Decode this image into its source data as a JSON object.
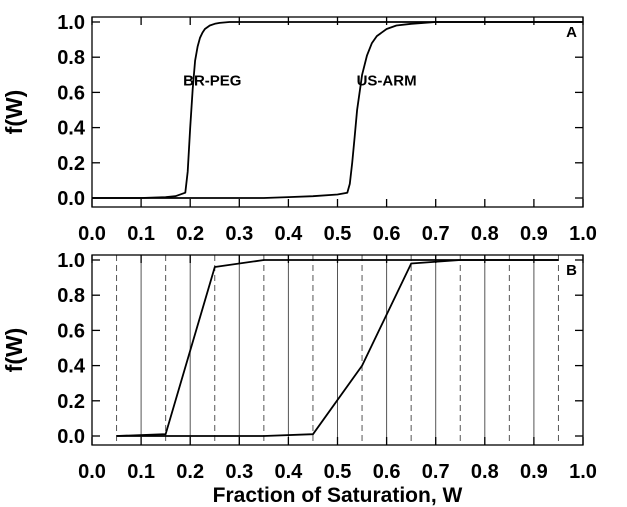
{
  "chart_data": [
    {
      "type": "line",
      "panel_label": "A",
      "ylabel": "f(W)",
      "xlabel": "",
      "xlim": [
        0.0,
        1.0
      ],
      "ylim": [
        0.0,
        1.0
      ],
      "x_ticks": [
        "0.0",
        "0.1",
        "0.2",
        "0.3",
        "0.4",
        "0.5",
        "0.6",
        "0.7",
        "0.8",
        "0.9",
        "1.0"
      ],
      "y_ticks": [
        "0.0",
        "0.2",
        "0.4",
        "0.6",
        "0.8",
        "1.0"
      ],
      "grid": false,
      "series": [
        {
          "name": "BR-PEG",
          "x": [
            0.0,
            0.05,
            0.1,
            0.15,
            0.17,
            0.19,
            0.195,
            0.2,
            0.205,
            0.21,
            0.215,
            0.22,
            0.225,
            0.23,
            0.24,
            0.25,
            0.26,
            0.28,
            0.3,
            0.35,
            0.4,
            0.5,
            0.6,
            0.7,
            0.8,
            0.9,
            1.0
          ],
          "y": [
            0.0,
            0.0,
            0.0,
            0.005,
            0.01,
            0.03,
            0.15,
            0.4,
            0.62,
            0.78,
            0.86,
            0.91,
            0.94,
            0.96,
            0.98,
            0.99,
            0.995,
            1.0,
            1.0,
            1.0,
            1.0,
            1.0,
            1.0,
            1.0,
            1.0,
            1.0,
            1.0
          ]
        },
        {
          "name": "US-ARM",
          "x": [
            0.0,
            0.35,
            0.4,
            0.45,
            0.5,
            0.52,
            0.525,
            0.53,
            0.535,
            0.54,
            0.545,
            0.55,
            0.56,
            0.57,
            0.58,
            0.6,
            0.62,
            0.65,
            0.7,
            0.75,
            0.8,
            0.9,
            1.0
          ],
          "y": [
            0.0,
            0.0,
            0.005,
            0.01,
            0.02,
            0.03,
            0.08,
            0.2,
            0.35,
            0.5,
            0.6,
            0.7,
            0.81,
            0.88,
            0.92,
            0.96,
            0.98,
            0.99,
            1.0,
            1.0,
            1.0,
            1.0,
            1.0
          ]
        }
      ],
      "annotations": [
        "BR-PEG",
        "US-ARM"
      ]
    },
    {
      "type": "line",
      "panel_label": "B",
      "ylabel": "f(W)",
      "xlabel": "Fraction of Saturation, W",
      "xlim": [
        0.0,
        1.0
      ],
      "ylim": [
        0.0,
        1.0
      ],
      "x_ticks": [
        "0.0",
        "0.1",
        "0.2",
        "0.3",
        "0.4",
        "0.5",
        "0.6",
        "0.7",
        "0.8",
        "0.9",
        "1.0"
      ],
      "y_ticks": [
        "0.0",
        "0.2",
        "0.4",
        "0.6",
        "0.8",
        "1.0"
      ],
      "grid": true,
      "solid_gridlines_x": [
        0.1,
        0.2,
        0.3,
        0.4,
        0.5,
        0.6,
        0.7,
        0.8,
        0.9
      ],
      "dashed_gridlines_x": [
        0.05,
        0.15,
        0.25,
        0.35,
        0.45,
        0.55,
        0.65,
        0.75,
        0.85,
        0.95
      ],
      "series": [
        {
          "x": [
            0.05,
            0.15,
            0.25,
            0.35,
            0.45,
            0.55,
            0.65,
            0.75,
            0.85,
            0.95
          ],
          "y": [
            0.0,
            0.01,
            0.96,
            1.0,
            1.0,
            1.0,
            1.0,
            1.0,
            1.0,
            1.0
          ]
        },
        {
          "x": [
            0.05,
            0.15,
            0.25,
            0.35,
            0.45,
            0.55,
            0.65,
            0.75,
            0.85,
            0.95
          ],
          "y": [
            0.0,
            0.0,
            0.0,
            0.0,
            0.01,
            0.4,
            0.98,
            1.0,
            1.0,
            1.0
          ]
        }
      ]
    }
  ]
}
